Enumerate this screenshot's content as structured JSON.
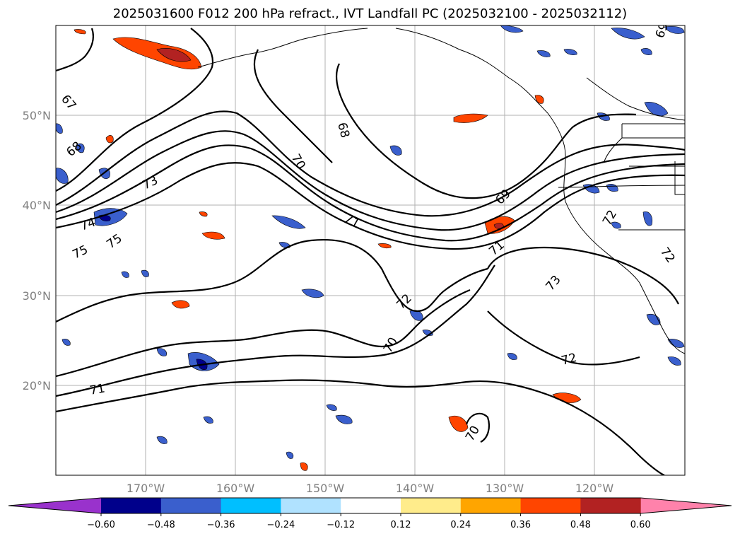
{
  "title": "2025031600 F012 200 hPa refract., IVT Landfall PC (2025032100 - 2025032112)",
  "lat_labels": [
    "50°N",
    "40°N",
    "30°N",
    "20°N"
  ],
  "lon_labels": [
    "170°W",
    "160°W",
    "150°W",
    "140°W",
    "130°W",
    "120°W"
  ],
  "contour_labels": [
    "67",
    "68",
    "73",
    "74",
    "75",
    "75",
    "70",
    "68",
    "71",
    "69",
    "72",
    "71",
    "73",
    "72",
    "72",
    "72",
    "70",
    "70",
    "71",
    "69"
  ],
  "colorbar": {
    "ticks": [
      "−0.60",
      "−0.48",
      "−0.36",
      "−0.24",
      "−0.12",
      "0.12",
      "0.24",
      "0.36",
      "0.48",
      "0.60"
    ],
    "colors": [
      "#9932cc",
      "#00008b",
      "#3a5fcd",
      "#00bfff",
      "#b0e2ff",
      "#ffffff",
      "#ffec8b",
      "#ffa500",
      "#ff4500",
      "#b22222",
      "#ff82ab"
    ]
  },
  "colors": {
    "grid": "#b0b0b0",
    "contour": "#000000",
    "coast": "#000000",
    "tick_text": "#808080"
  }
}
